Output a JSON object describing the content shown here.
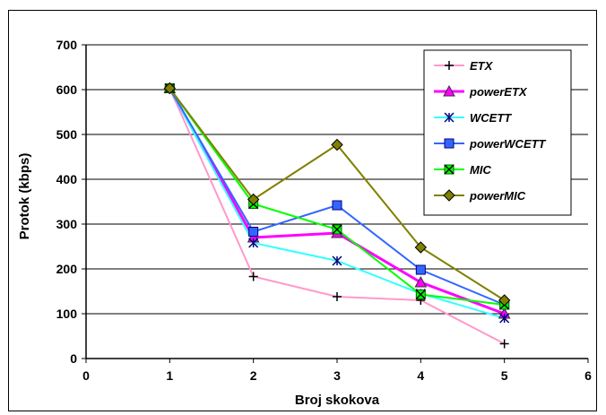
{
  "chart_data": {
    "type": "line",
    "xlabel": "Broj skokova",
    "ylabel": "Protok (kbps)",
    "xlim": [
      0,
      6
    ],
    "ylim": [
      0,
      700
    ],
    "x_ticks": [
      "0",
      "1",
      "2",
      "3",
      "4",
      "5",
      "6"
    ],
    "y_ticks": [
      "0",
      "100",
      "200",
      "300",
      "400",
      "500",
      "600",
      "700"
    ],
    "grid": "horizontal",
    "legend_position": "top-right",
    "x": [
      1,
      2,
      3,
      4,
      5
    ],
    "series": [
      {
        "name": "ETX",
        "values": [
          603,
          183,
          138,
          130,
          33
        ],
        "color": "#ff99cc",
        "marker": "plus",
        "marker_color": "#ff99cc"
      },
      {
        "name": "powerETX",
        "values": [
          603,
          270,
          280,
          170,
          100
        ],
        "color": "#ff00ff",
        "marker": "triangle",
        "marker_color": "#ff00ff"
      },
      {
        "name": "WCETT",
        "values": [
          603,
          258,
          218,
          145,
          90
        ],
        "color": "#33ffff",
        "marker": "asterisk",
        "marker_color": "#33ffff"
      },
      {
        "name": "powerWCETT",
        "values": [
          603,
          283,
          342,
          198,
          120
        ],
        "color": "#3366ff",
        "marker": "square",
        "marker_color": "#3366ff"
      },
      {
        "name": "MIC",
        "values": [
          603,
          345,
          288,
          143,
          120
        ],
        "color": "#00ff00",
        "marker": "xsquare",
        "marker_color": "#00ff00"
      },
      {
        "name": "powerMIC",
        "values": [
          603,
          355,
          477,
          248,
          130
        ],
        "color": "#808000",
        "marker": "diamond",
        "marker_color": "#808000"
      }
    ]
  }
}
